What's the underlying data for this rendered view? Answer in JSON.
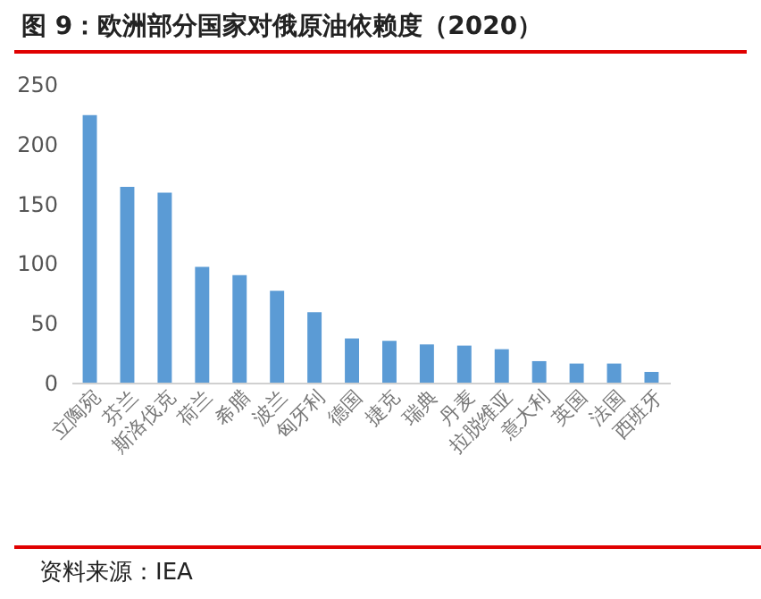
{
  "chart_data": {
    "type": "bar",
    "title": "图 9：欧洲部分国家对俄原油依赖度（2020）",
    "categories": [
      "立陶宛",
      "芬兰",
      "斯洛伐克",
      "荷兰",
      "希腊",
      "波兰",
      "匈牙利",
      "德国",
      "捷克",
      "瑞典",
      "丹麦",
      "拉脱维亚",
      "意大利",
      "英国",
      "法国",
      "西班牙"
    ],
    "values": [
      224,
      164,
      159,
      97,
      90,
      77,
      59,
      37,
      35,
      32,
      31,
      28,
      18,
      16,
      16,
      9
    ],
    "color": "#5b9bd5",
    "ylim": [
      0,
      250
    ],
    "yticks": [
      0,
      50,
      100,
      150,
      200,
      250
    ],
    "grid": false,
    "annotations": [
      "资料来源：IEA"
    ]
  }
}
